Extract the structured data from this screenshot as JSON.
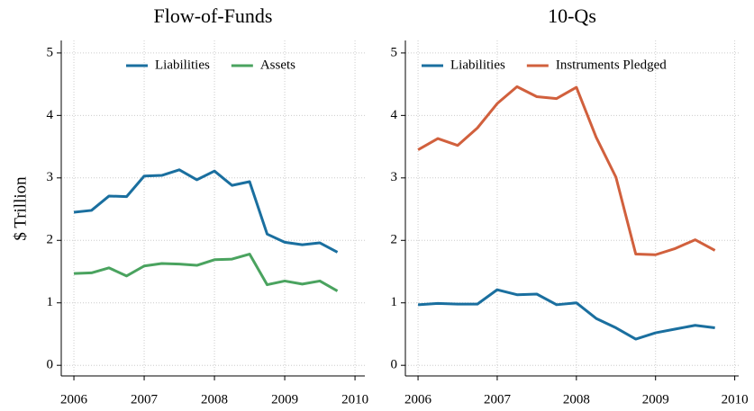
{
  "chart_data": [
    {
      "type": "line",
      "title": "Flow-of-Funds",
      "ylabel": "$ Trillion",
      "x": [
        2006,
        2006.25,
        2006.5,
        2006.75,
        2007,
        2007.25,
        2007.5,
        2007.75,
        2008,
        2008.25,
        2008.5,
        2008.75,
        2009,
        2009.25,
        2009.5,
        2009.75
      ],
      "series": [
        {
          "name": "Liabilities",
          "color": "#1a6f9f",
          "values": [
            2.45,
            2.48,
            2.71,
            2.7,
            3.03,
            3.04,
            3.13,
            2.97,
            3.11,
            2.88,
            2.94,
            2.1,
            1.97,
            1.93,
            1.96,
            1.81
          ]
        },
        {
          "name": "Assets",
          "color": "#4aa35f",
          "values": [
            1.47,
            1.48,
            1.56,
            1.43,
            1.59,
            1.63,
            1.62,
            1.6,
            1.69,
            1.7,
            1.78,
            1.29,
            1.35,
            1.3,
            1.35,
            1.19
          ]
        }
      ],
      "xlim": [
        2005.82,
        2010.14
      ],
      "xticks": [
        2006,
        2007,
        2008,
        2009,
        2010
      ],
      "ylim": [
        -0.17,
        5.2
      ],
      "yticks": [
        0,
        1,
        2,
        3,
        4,
        5
      ],
      "grid": true,
      "legend": "top-right"
    },
    {
      "type": "line",
      "title": "10-Qs",
      "x": [
        2006,
        2006.25,
        2006.5,
        2006.75,
        2007,
        2007.25,
        2007.5,
        2007.75,
        2008,
        2008.25,
        2008.5,
        2008.75,
        2009,
        2009.25,
        2009.5,
        2009.75
      ],
      "series": [
        {
          "name": "Liabilities",
          "color": "#1a6f9f",
          "values": [
            0.97,
            0.99,
            0.98,
            0.98,
            1.21,
            1.13,
            1.14,
            0.97,
            1.0,
            0.75,
            0.6,
            0.42,
            0.52,
            0.58,
            0.64,
            0.6
          ]
        },
        {
          "name": "Instruments Pledged",
          "color": "#d1603d",
          "values": [
            3.45,
            3.63,
            3.52,
            3.8,
            4.19,
            4.46,
            4.3,
            4.27,
            4.45,
            3.65,
            3.01,
            1.78,
            1.77,
            1.87,
            2.01,
            1.84
          ]
        }
      ],
      "xlim": [
        2005.84,
        2010.05
      ],
      "xticks": [
        2006,
        2007,
        2008,
        2009,
        2010
      ],
      "ylim": [
        -0.17,
        5.2
      ],
      "yticks": [
        0,
        1,
        2,
        3,
        4,
        5
      ],
      "grid": true,
      "legend": "top-left"
    }
  ]
}
